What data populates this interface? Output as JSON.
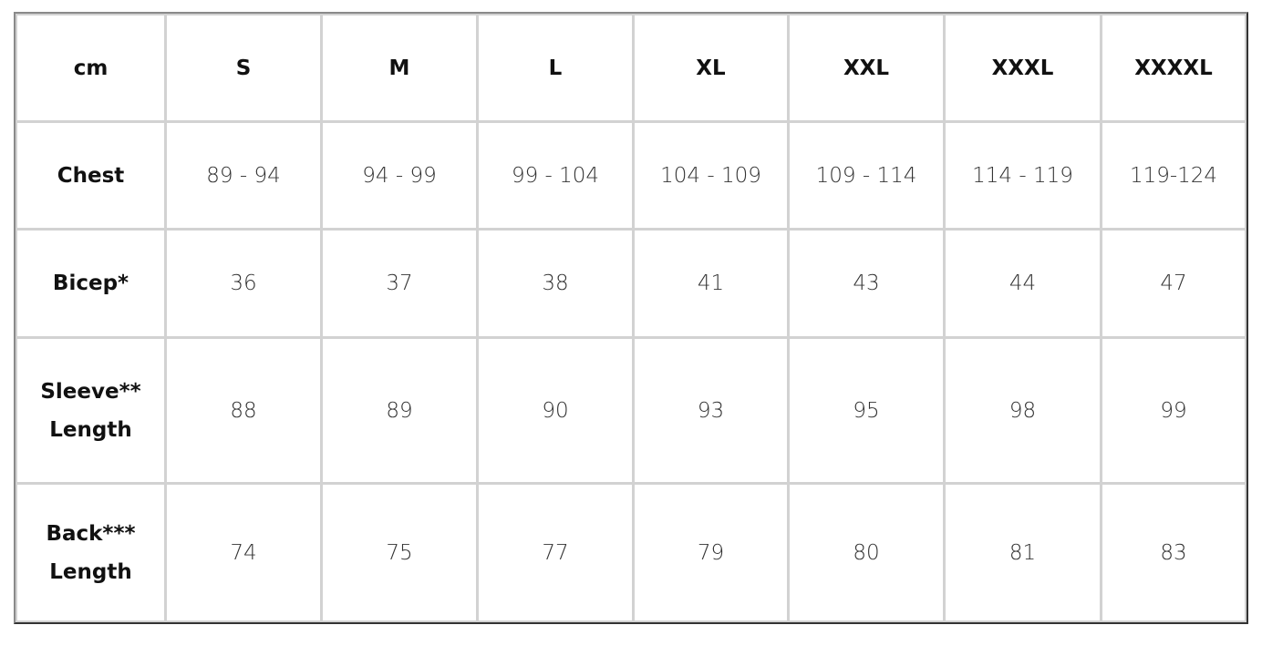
{
  "header": [
    "cm",
    "S",
    "M",
    "L",
    "XL",
    "XXL",
    "XXXL",
    "XXXXL"
  ],
  "rows": [
    {
      "label": "Chest",
      "values": [
        "89 - 94",
        "94 - 99",
        "99 - 104",
        "104 - 109",
        "109 - 114",
        "114 - 119",
        "119-124"
      ]
    },
    {
      "label": "Bicep*",
      "values": [
        "36",
        "37",
        "38",
        "41",
        "43",
        "44",
        "47"
      ]
    },
    {
      "label": "Sleeve**\nLength",
      "values": [
        "88",
        "89",
        "90",
        "93",
        "95",
        "98",
        "99"
      ]
    },
    {
      "label": "Back***\nLength",
      "values": [
        "74",
        "75",
        "77",
        "79",
        "80",
        "81",
        "83"
      ]
    }
  ]
}
